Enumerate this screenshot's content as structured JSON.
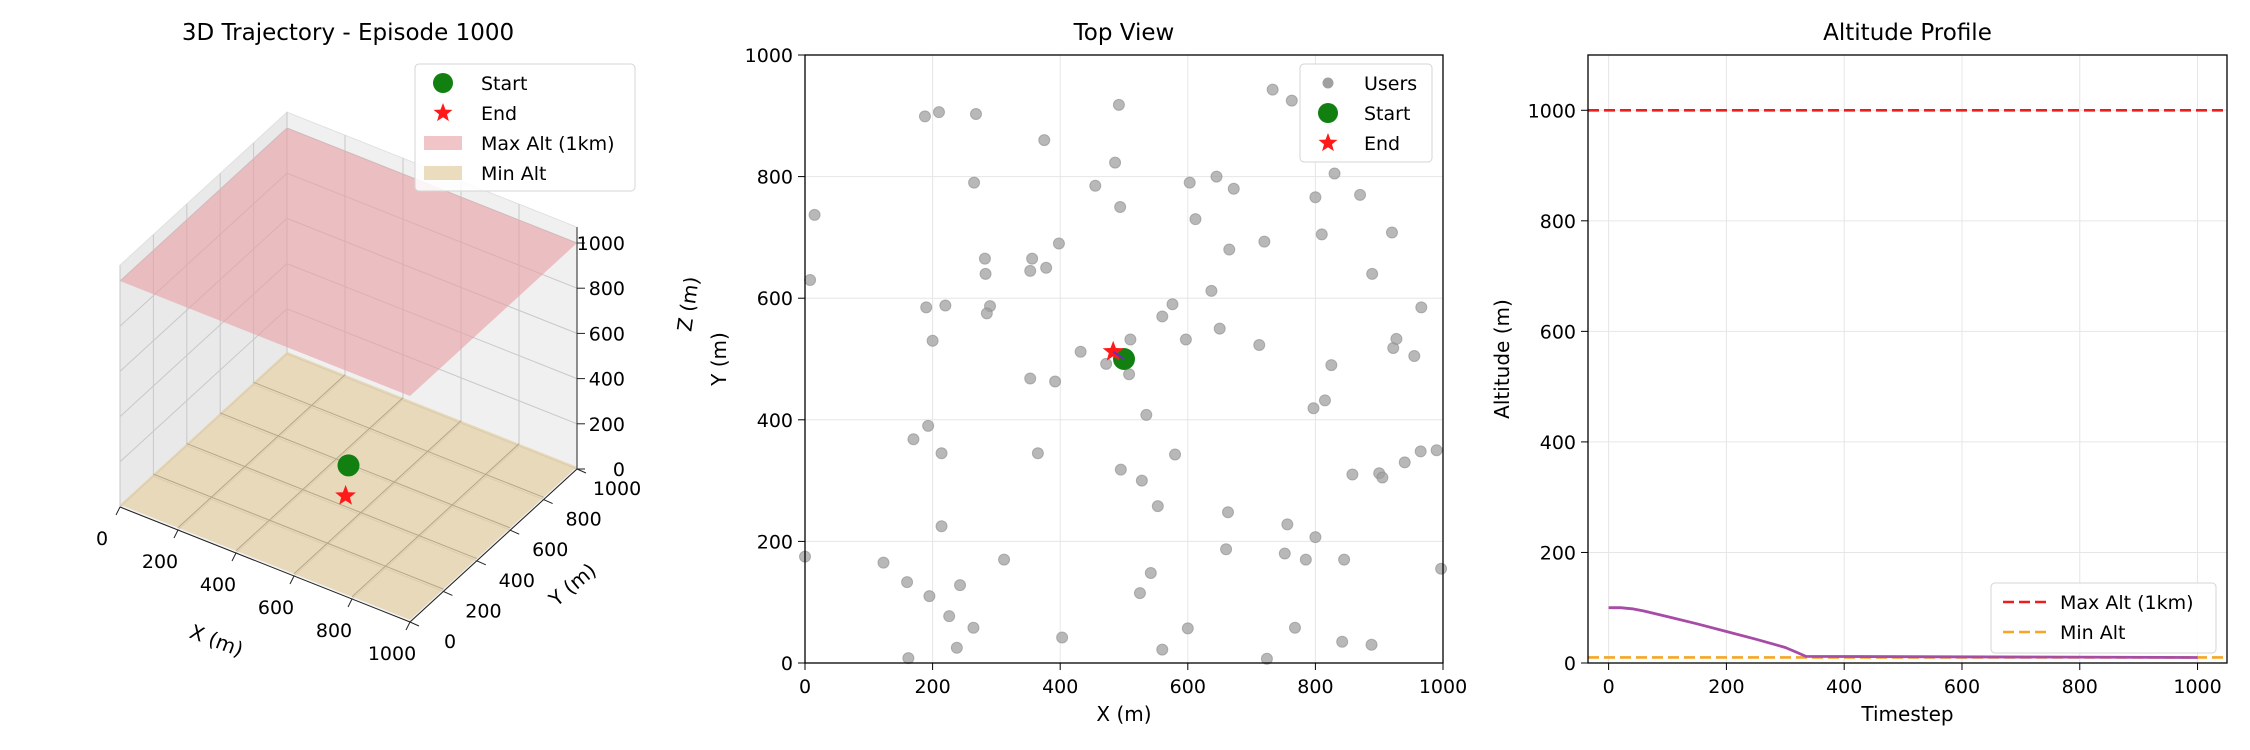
{
  "chart_data": [
    {
      "type": "scatter3d",
      "title": "3D Trajectory - Episode 1000",
      "xlabel": "X (m)",
      "ylabel": "Y (m)",
      "zlabel": "Z (m)",
      "xlim": [
        0,
        1000
      ],
      "ylim": [
        0,
        1000
      ],
      "zlim": [
        0,
        1000
      ],
      "xticks": [
        "0",
        "200",
        "400",
        "600",
        "800",
        "1000"
      ],
      "yticks": [
        "0",
        "200",
        "400",
        "600",
        "800",
        "1000"
      ],
      "zticks": [
        "0",
        "200",
        "400",
        "600",
        "800",
        "1000"
      ],
      "planes": [
        {
          "name": "Max Alt (1km)",
          "z": 1000,
          "color": "#e8a0a5"
        },
        {
          "name": "Min Alt",
          "z": 10,
          "color": "#e3cfa3"
        }
      ],
      "start": {
        "x": 500,
        "y": 500,
        "z": 100
      },
      "end": {
        "x": 483,
        "y": 512,
        "z": 10
      },
      "legend": [
        "Start",
        "End",
        "Max Alt (1km)",
        "Min Alt"
      ],
      "legend_position": "top-right"
    },
    {
      "type": "scatter",
      "title": "Top View",
      "xlabel": "X (m)",
      "ylabel": "Y (m)",
      "xlim": [
        0,
        1000
      ],
      "ylim": [
        0,
        1000
      ],
      "xticks": [
        "0",
        "200",
        "400",
        "600",
        "800",
        "1000"
      ],
      "yticks": [
        "0",
        "200",
        "400",
        "600",
        "800",
        "1000"
      ],
      "grid": true,
      "users": [
        [
          188,
          899
        ],
        [
          210,
          906
        ],
        [
          268,
          903
        ],
        [
          492,
          918
        ],
        [
          733,
          943
        ],
        [
          763,
          925
        ],
        [
          375,
          860
        ],
        [
          486,
          823
        ],
        [
          265,
          790
        ],
        [
          455,
          785
        ],
        [
          494,
          750
        ],
        [
          603,
          790
        ],
        [
          645,
          800
        ],
        [
          672,
          780
        ],
        [
          800,
          766
        ],
        [
          830,
          805
        ],
        [
          870,
          770
        ],
        [
          15,
          737
        ],
        [
          612,
          730
        ],
        [
          810,
          705
        ],
        [
          920,
          708
        ],
        [
          398,
          690
        ],
        [
          282,
          665
        ],
        [
          356,
          665
        ],
        [
          378,
          650
        ],
        [
          353,
          645
        ],
        [
          283,
          640
        ],
        [
          665,
          680
        ],
        [
          720,
          693
        ],
        [
          8,
          630
        ],
        [
          889,
          640
        ],
        [
          190,
          585
        ],
        [
          220,
          588
        ],
        [
          290,
          587
        ],
        [
          285,
          575
        ],
        [
          576,
          590
        ],
        [
          560,
          570
        ],
        [
          637,
          612
        ],
        [
          966,
          585
        ],
        [
          200,
          530
        ],
        [
          432,
          512
        ],
        [
          472,
          492
        ],
        [
          510,
          532
        ],
        [
          597,
          532
        ],
        [
          650,
          550
        ],
        [
          712,
          523
        ],
        [
          922,
          518
        ],
        [
          927,
          533
        ],
        [
          955,
          505
        ],
        [
          825,
          490
        ],
        [
          353,
          468
        ],
        [
          392,
          463
        ],
        [
          508,
          475
        ],
        [
          815,
          432
        ],
        [
          535,
          408
        ],
        [
          797,
          419
        ],
        [
          193,
          390
        ],
        [
          170,
          368
        ],
        [
          214,
          345
        ],
        [
          365,
          345
        ],
        [
          580,
          343
        ],
        [
          858,
          310
        ],
        [
          900,
          312
        ],
        [
          905,
          305
        ],
        [
          940,
          330
        ],
        [
          965,
          348
        ],
        [
          990,
          350
        ],
        [
          495,
          318
        ],
        [
          528,
          300
        ],
        [
          553,
          258
        ],
        [
          663,
          248
        ],
        [
          214,
          225
        ],
        [
          756,
          228
        ],
        [
          800,
          207
        ],
        [
          0,
          175
        ],
        [
          123,
          165
        ],
        [
          312,
          170
        ],
        [
          660,
          187
        ],
        [
          752,
          180
        ],
        [
          785,
          170
        ],
        [
          845,
          170
        ],
        [
          160,
          133
        ],
        [
          195,
          110
        ],
        [
          243,
          128
        ],
        [
          525,
          115
        ],
        [
          542,
          148
        ],
        [
          997,
          155
        ],
        [
          226,
          77
        ],
        [
          264,
          58
        ],
        [
          600,
          57
        ],
        [
          768,
          58
        ],
        [
          403,
          42
        ],
        [
          842,
          35
        ],
        [
          888,
          30
        ],
        [
          238,
          25
        ],
        [
          560,
          22
        ],
        [
          162,
          8
        ],
        [
          724,
          7
        ]
      ],
      "start": {
        "x": 500,
        "y": 500
      },
      "end": {
        "x": 483,
        "y": 512
      },
      "legend": [
        "Users",
        "Start",
        "End"
      ],
      "legend_position": "top-right"
    },
    {
      "type": "line",
      "title": "Altitude Profile",
      "xlabel": "Timestep",
      "ylabel": "Altitude (m)",
      "xlim": [
        -35,
        1050
      ],
      "ylim": [
        0,
        1100
      ],
      "xticks": [
        "0",
        "200",
        "400",
        "600",
        "800",
        "1000"
      ],
      "yticks": [
        "0",
        "200",
        "400",
        "600",
        "800",
        "1000"
      ],
      "grid": true,
      "series": [
        {
          "name": "Altitude",
          "color": "#a64ca6",
          "x": [
            0,
            20,
            40,
            60,
            100,
            150,
            200,
            250,
            300,
            320,
            335,
            1000
          ],
          "y": [
            100,
            100,
            98,
            94,
            84,
            71,
            57,
            43,
            28,
            19,
            12,
            10
          ]
        }
      ],
      "hlines": [
        {
          "name": "Max Alt (1km)",
          "y": 1000,
          "color": "#ee1c1c",
          "dash": true
        },
        {
          "name": "Min Alt",
          "y": 10,
          "color": "#f5a623",
          "dash": true
        }
      ],
      "legend": [
        "Max Alt (1km)",
        "Min Alt"
      ],
      "legend_position": "bottom-right"
    }
  ]
}
